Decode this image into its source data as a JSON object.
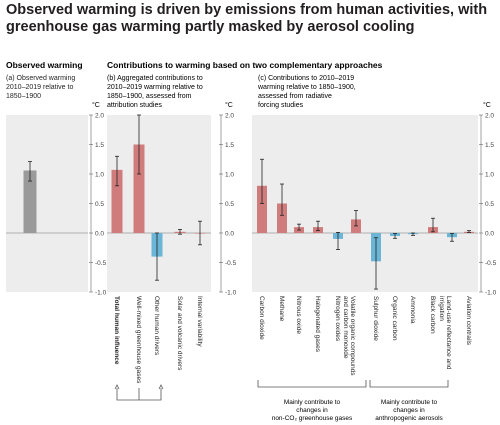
{
  "page": {
    "title": "Observed warming is driven by emissions from human activities, with greenhouse gas warming partly masked by aerosol cooling"
  },
  "chart_data": [
    {
      "type": "bar",
      "heading": "Observed warming",
      "title": "(a) Observed warming 2010–2019 relative to 1850–1900",
      "ylabel": "°C",
      "ylim": [
        -1.0,
        2.0
      ],
      "yticks": [
        "2.0",
        "1.5",
        "1.0",
        "0.5",
        "0.0",
        "-0.5",
        "-1.0"
      ],
      "categories": [
        ""
      ],
      "values": [
        1.06
      ],
      "errors": [
        [
          0.88,
          1.21
        ]
      ],
      "colors": [
        "#9a9a9a"
      ]
    },
    {
      "type": "bar",
      "heading": "Contributions to warming based on two complementary approaches",
      "title": "(b) Aggregated contributions to 2010–2019 warming relative to 1850–1900, assessed from attribution studies",
      "ylabel": "°C",
      "ylim": [
        -1.0,
        2.0
      ],
      "yticks": [
        "2.0",
        "1.5",
        "1.0",
        "0.5",
        "0.0",
        "-0.5",
        "-1.0"
      ],
      "categories": [
        "Total human influence",
        "Well-mixed greenhouse gases",
        "Other human drivers",
        "Solar and volcanic drivers",
        "Internal variability"
      ],
      "values": [
        1.07,
        1.5,
        -0.4,
        0.02,
        0.0
      ],
      "errors": [
        [
          0.8,
          1.3
        ],
        [
          1.0,
          2.0
        ],
        [
          -0.8,
          0.0
        ],
        [
          -0.02,
          0.06
        ],
        [
          -0.2,
          0.2
        ]
      ],
      "colors": [
        "#d07c7c",
        "#d07c7c",
        "#6bb5d6",
        "#d07c7c",
        "#d07c7c"
      ]
    },
    {
      "type": "bar",
      "title": "(c) Contributions to 2010–2019 warming relative to 1850–1900, assessed from radiative forcing studies",
      "ylabel": "°C",
      "ylim": [
        -1.0,
        2.0
      ],
      "yticks": [
        "2.0",
        "1.5",
        "1.0",
        "0.5",
        "0.0",
        "-0.5",
        "-1.0"
      ],
      "categories": [
        "Carbon dioxide",
        "Methane",
        "Nitrous oxide",
        "Halogenated gases",
        "Nitrogen oxides",
        "Volatile organic compounds and carbon monoxide",
        "Sulphur dioxide",
        "Organic carbon",
        "Ammonia",
        "Black carbon",
        "Land-use reflectance and irrigation",
        "Aviation contrails"
      ],
      "values": [
        0.8,
        0.5,
        0.1,
        0.1,
        -0.1,
        0.23,
        -0.48,
        -0.05,
        -0.02,
        0.1,
        -0.07,
        0.02
      ],
      "errors": [
        [
          0.5,
          1.25
        ],
        [
          0.3,
          0.83
        ],
        [
          0.05,
          0.15
        ],
        [
          0.04,
          0.2
        ],
        [
          -0.28,
          0.01
        ],
        [
          0.12,
          0.38
        ],
        [
          -0.95,
          -0.08
        ],
        [
          -0.09,
          -0.01
        ],
        [
          -0.04,
          0.0
        ],
        [
          0.02,
          0.25
        ],
        [
          -0.14,
          -0.01
        ],
        [
          0.01,
          0.04
        ]
      ],
      "colors": [
        "#d07c7c",
        "#d07c7c",
        "#d07c7c",
        "#d07c7c",
        "#6bb5d6",
        "#d07c7c",
        "#6bb5d6",
        "#6bb5d6",
        "#6bb5d6",
        "#d07c7c",
        "#6bb5d6",
        "#d07c7c"
      ],
      "group_labels": [
        "Mainly contribute to changes in non-CO₂ greenhouse gases",
        "Mainly contribute to changes in anthropogenic aerosols"
      ]
    }
  ]
}
